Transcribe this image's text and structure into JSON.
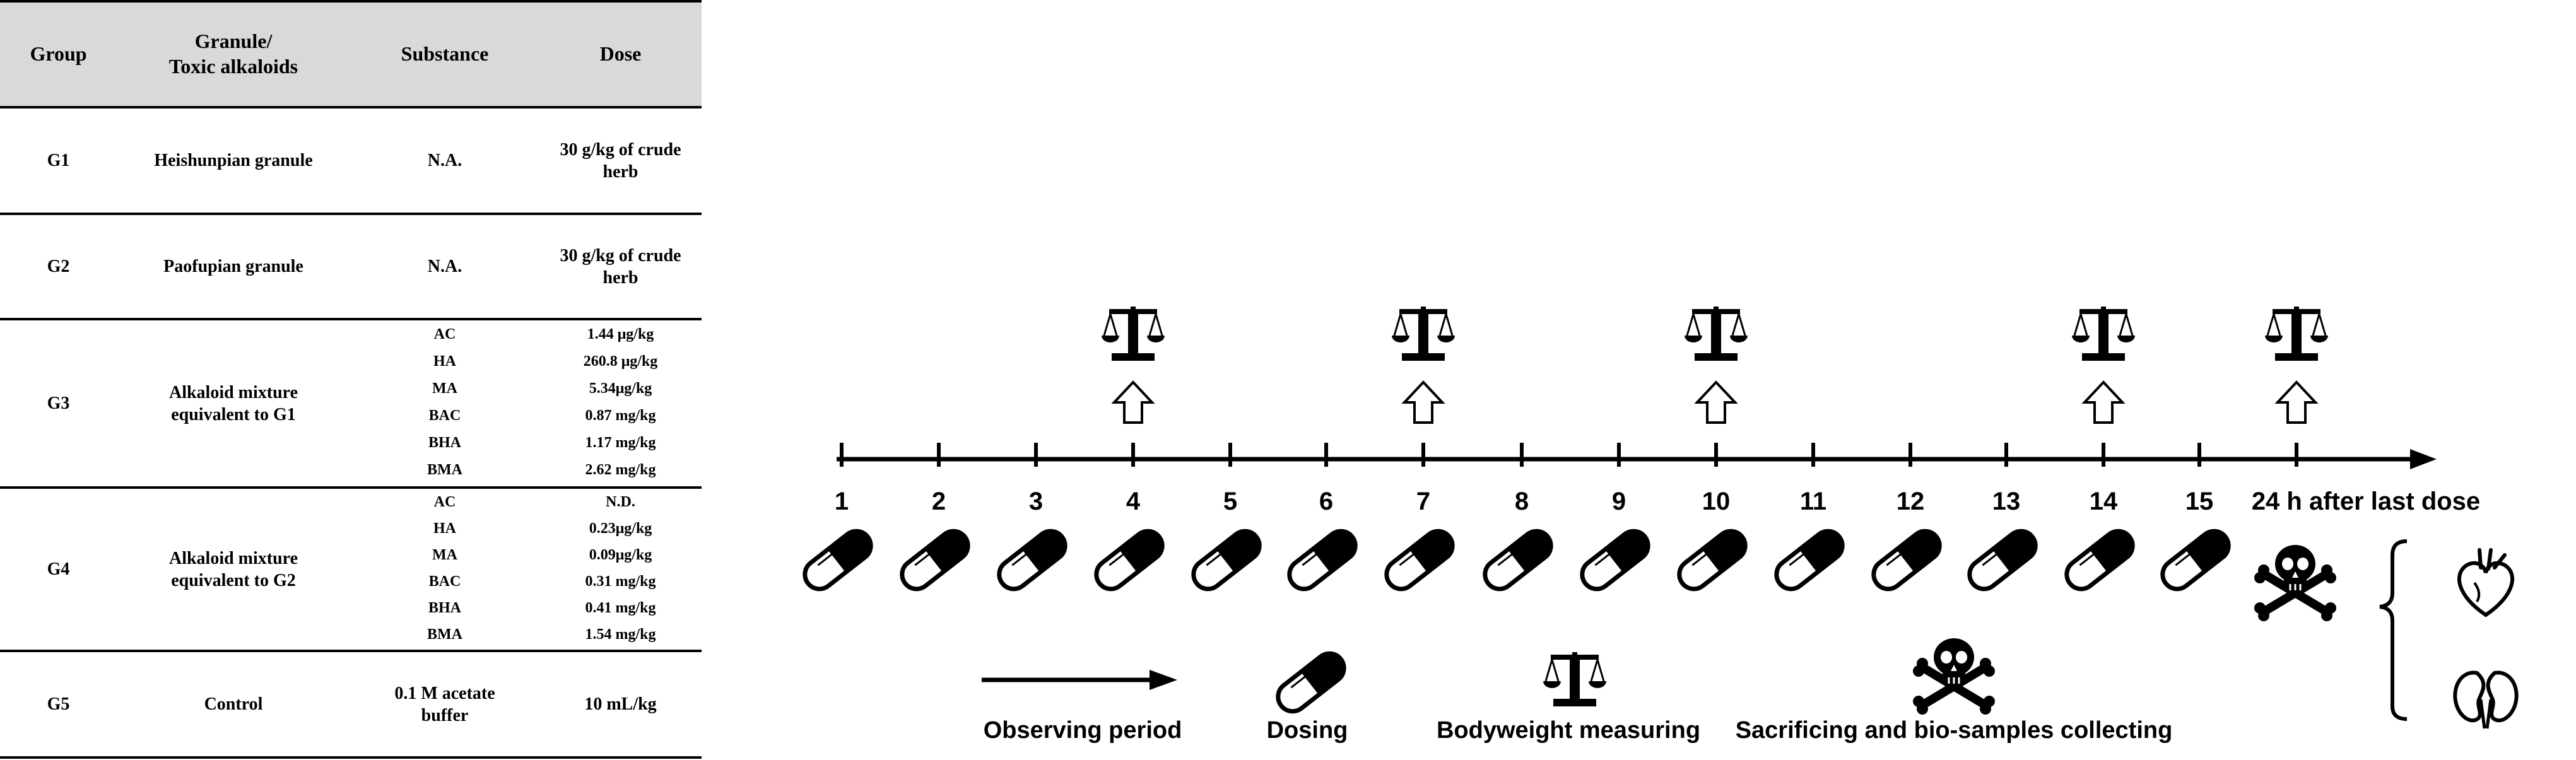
{
  "table": {
    "headers": {
      "group": "Group",
      "granule_line1": "Granule/",
      "granule_line2": "Toxic alkaloids",
      "substance": "Substance",
      "dose": "Dose"
    },
    "rows": [
      {
        "group": "G1",
        "granule": "Heishunpian granule",
        "substance": "N.A.",
        "dose": "30 g/kg of crude herb"
      },
      {
        "group": "G2",
        "granule": "Paofupian granule",
        "substance": "N.A.",
        "dose": "30 g/kg of crude herb"
      },
      {
        "group": "G3",
        "granule": "Alkaloid mixture equivalent to G1",
        "items": [
          {
            "substance": "AC",
            "dose": "1.44 μg/kg"
          },
          {
            "substance": "HA",
            "dose": "260.8 μg/kg"
          },
          {
            "substance": "MA",
            "dose": "5.34μg/kg"
          },
          {
            "substance": "BAC",
            "dose": "0.87 mg/kg"
          },
          {
            "substance": "BHA",
            "dose": "1.17 mg/kg"
          },
          {
            "substance": "BMA",
            "dose": "2.62 mg/kg"
          }
        ]
      },
      {
        "group": "G4",
        "granule": "Alkaloid mixture equivalent to G2",
        "items": [
          {
            "substance": "AC",
            "dose": "N.D."
          },
          {
            "substance": "HA",
            "dose": "0.23μg/kg"
          },
          {
            "substance": "MA",
            "dose": "0.09μg/kg"
          },
          {
            "substance": "BAC",
            "dose": "0.31 mg/kg"
          },
          {
            "substance": "BHA",
            "dose": "0.41 mg/kg"
          },
          {
            "substance": "BMA",
            "dose": "1.54 mg/kg"
          }
        ]
      },
      {
        "group": "G5",
        "granule": "Control",
        "substance": "0.1 M acetate buffer",
        "dose": "10 mL/kg"
      }
    ]
  },
  "timeline": {
    "days": [
      "1",
      "2",
      "3",
      "4",
      "5",
      "6",
      "7",
      "8",
      "9",
      "10",
      "11",
      "12",
      "13",
      "14",
      "15"
    ],
    "end_label": "24 h after last dose",
    "weigh_days": [
      "4",
      "7",
      "10",
      "14",
      "end"
    ]
  },
  "legend": {
    "observing": "Observing period",
    "dosing": "Dosing",
    "bodyweight": "Bodyweight measuring",
    "sacrifice": "Sacrificing and bio-samples collecting"
  },
  "icons": {
    "pill": "pill-capsule-icon",
    "scale": "balance-scale-icon",
    "arrow": "up-arrow-icon",
    "skull": "skull-crossbones-icon",
    "heart": "heart-icon",
    "kidney": "kidney-icon"
  }
}
